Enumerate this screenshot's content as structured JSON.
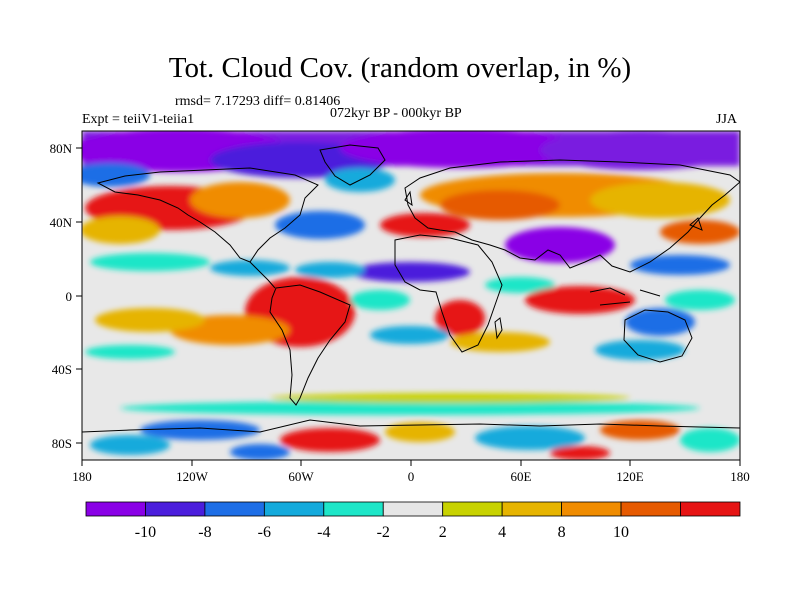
{
  "title": "Tot. Cloud Cov. (random overlap, in %)",
  "stats": "rmsd= 7.17293 diff= 0.81406",
  "experiment": "Expt = teiiV1-teiia1",
  "period": "072kyr BP - 000kyr BP",
  "season": "JJA",
  "lat_ticks": [
    "80N",
    "40N",
    "0",
    "40S",
    "80S"
  ],
  "lon_ticks": [
    "180",
    "120W",
    "60W",
    "0",
    "60E",
    "120E",
    "180"
  ],
  "colorbar": {
    "labels": [
      "-10",
      "-8",
      "-6",
      "-4",
      "-2",
      "2",
      "4",
      "8",
      "10"
    ],
    "colors": [
      "#8a00e6",
      "#4b1edc",
      "#1e6ee6",
      "#14aadc",
      "#1ee6c8",
      "#e6e6e6",
      "#c8d200",
      "#e6b400",
      "#f08c00",
      "#e65a00",
      "#e61414"
    ]
  },
  "map_colors": {
    "neutral": "#e8e8e8",
    "coastline": "#000000"
  }
}
